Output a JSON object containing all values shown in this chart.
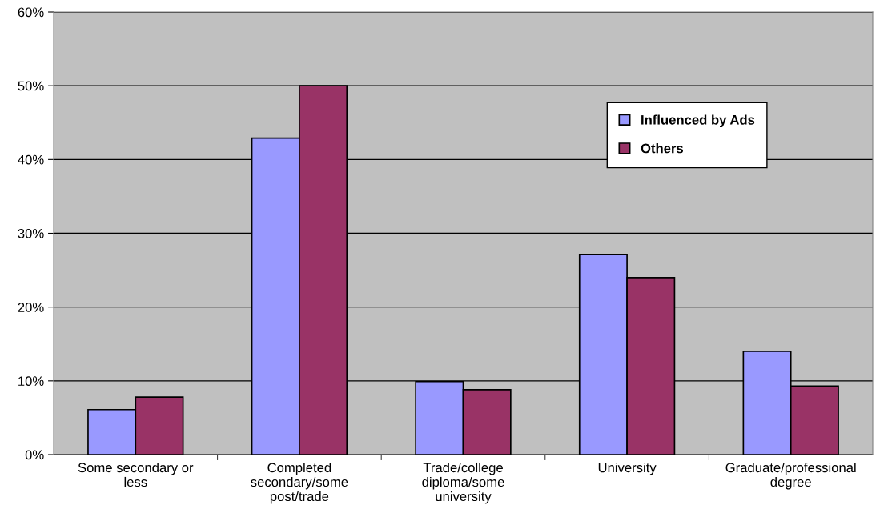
{
  "chart_data": {
    "type": "bar",
    "categories": [
      "Some secondary or less",
      "Completed secondary/some post/trade",
      "Trade/college diploma/some university",
      "University",
      "Graduate/professional degree"
    ],
    "series": [
      {
        "name": "Influenced by Ads",
        "color": "#9999ff",
        "values": [
          6.1,
          42.9,
          9.9,
          27.1,
          14.0
        ]
      },
      {
        "name": "Others",
        "color": "#993366",
        "values": [
          7.8,
          50.0,
          8.8,
          24.0,
          9.3
        ]
      }
    ],
    "ylim": [
      0,
      60
    ],
    "yticks": [
      {
        "value": 0,
        "label": "0%"
      },
      {
        "value": 10,
        "label": "10%"
      },
      {
        "value": 20,
        "label": "20%"
      },
      {
        "value": 30,
        "label": "30%"
      },
      {
        "value": 40,
        "label": "40%"
      },
      {
        "value": 50,
        "label": "50%"
      },
      {
        "value": 60,
        "label": "60%"
      }
    ],
    "grid": "y",
    "legend": "top right"
  }
}
